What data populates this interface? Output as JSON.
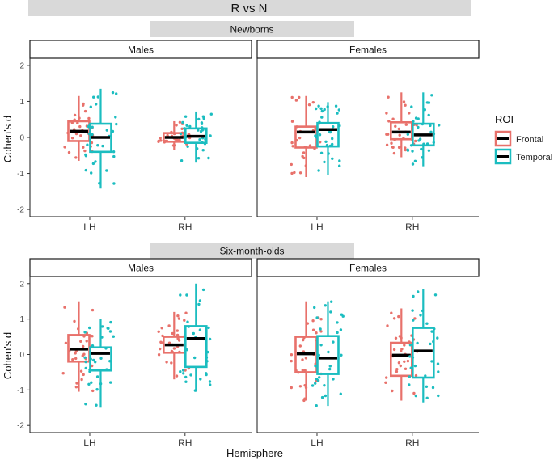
{
  "title": "R vs N",
  "xlabel": "Hemisphere",
  "ylabel": "Cohen's d",
  "legend": {
    "title": "ROI",
    "items": [
      {
        "label": "Frontal",
        "color": "#E8716B"
      },
      {
        "label": "Temporal",
        "color": "#1BBDC0"
      }
    ]
  },
  "colors": {
    "frontal": "#E8716B",
    "temporal": "#1BBDC0",
    "median": "#000000",
    "strip_bg": "#D9D9D9"
  },
  "chart_data": [
    {
      "type": "boxplot",
      "group": "Newborns",
      "facets": [
        "Males",
        "Females"
      ],
      "categories": [
        "LH",
        "RH"
      ],
      "series": [
        "Frontal",
        "Temporal"
      ],
      "ylim": [
        -2.2,
        2.2
      ],
      "yticks": [
        -2,
        -1,
        0,
        1,
        2
      ],
      "boxes": [
        {
          "facet": "Males",
          "category": "LH",
          "series": "Frontal",
          "min": -0.65,
          "q1": -0.1,
          "median": 0.17,
          "q3": 0.45,
          "max": 1.15
        },
        {
          "facet": "Males",
          "category": "LH",
          "series": "Temporal",
          "min": -1.42,
          "q1": -0.4,
          "median": 0.0,
          "q3": 0.38,
          "max": 1.35
        },
        {
          "facet": "Males",
          "category": "RH",
          "series": "Frontal",
          "min": -0.35,
          "q1": -0.12,
          "median": 0.0,
          "q3": 0.12,
          "max": 0.45
        },
        {
          "facet": "Males",
          "category": "RH",
          "series": "Temporal",
          "min": -0.7,
          "q1": -0.15,
          "median": 0.03,
          "q3": 0.25,
          "max": 0.72
        },
        {
          "facet": "Females",
          "category": "LH",
          "series": "Frontal",
          "min": -1.1,
          "q1": -0.28,
          "median": 0.15,
          "q3": 0.3,
          "max": 1.15
        },
        {
          "facet": "Females",
          "category": "LH",
          "series": "Temporal",
          "min": -1.05,
          "q1": -0.25,
          "median": 0.22,
          "q3": 0.4,
          "max": 0.98
        },
        {
          "facet": "Females",
          "category": "RH",
          "series": "Frontal",
          "min": -0.55,
          "q1": -0.05,
          "median": 0.15,
          "q3": 0.42,
          "max": 1.25
        },
        {
          "facet": "Females",
          "category": "RH",
          "series": "Temporal",
          "min": -0.8,
          "q1": -0.22,
          "median": 0.07,
          "q3": 0.38,
          "max": 1.25
        }
      ]
    },
    {
      "type": "boxplot",
      "group": "Six-month-olds",
      "facets": [
        "Males",
        "Females"
      ],
      "categories": [
        "LH",
        "RH"
      ],
      "series": [
        "Frontal",
        "Temporal"
      ],
      "ylim": [
        -2.2,
        2.2
      ],
      "yticks": [
        -2,
        -1,
        0,
        1,
        2
      ],
      "boxes": [
        {
          "facet": "Males",
          "category": "LH",
          "series": "Frontal",
          "min": -1.05,
          "q1": -0.2,
          "median": 0.15,
          "q3": 0.55,
          "max": 1.5
        },
        {
          "facet": "Males",
          "category": "LH",
          "series": "Temporal",
          "min": -1.5,
          "q1": -0.45,
          "median": 0.03,
          "q3": 0.2,
          "max": 1.0
        },
        {
          "facet": "Males",
          "category": "RH",
          "series": "Frontal",
          "min": -0.7,
          "q1": 0.05,
          "median": 0.27,
          "q3": 0.5,
          "max": 1.2
        },
        {
          "facet": "Males",
          "category": "RH",
          "series": "Temporal",
          "min": -1.05,
          "q1": -0.35,
          "median": 0.45,
          "q3": 0.8,
          "max": 2.0
        },
        {
          "facet": "Females",
          "category": "LH",
          "series": "Frontal",
          "min": -1.3,
          "q1": -0.5,
          "median": 0.02,
          "q3": 0.5,
          "max": 1.5
        },
        {
          "facet": "Females",
          "category": "LH",
          "series": "Temporal",
          "min": -1.45,
          "q1": -0.55,
          "median": -0.1,
          "q3": 0.52,
          "max": 1.5
        },
        {
          "facet": "Females",
          "category": "RH",
          "series": "Frontal",
          "min": -1.3,
          "q1": -0.6,
          "median": -0.02,
          "q3": 0.33,
          "max": 1.3
        },
        {
          "facet": "Females",
          "category": "RH",
          "series": "Temporal",
          "min": -1.35,
          "q1": -0.65,
          "median": 0.1,
          "q3": 0.75,
          "max": 1.85
        }
      ]
    }
  ]
}
